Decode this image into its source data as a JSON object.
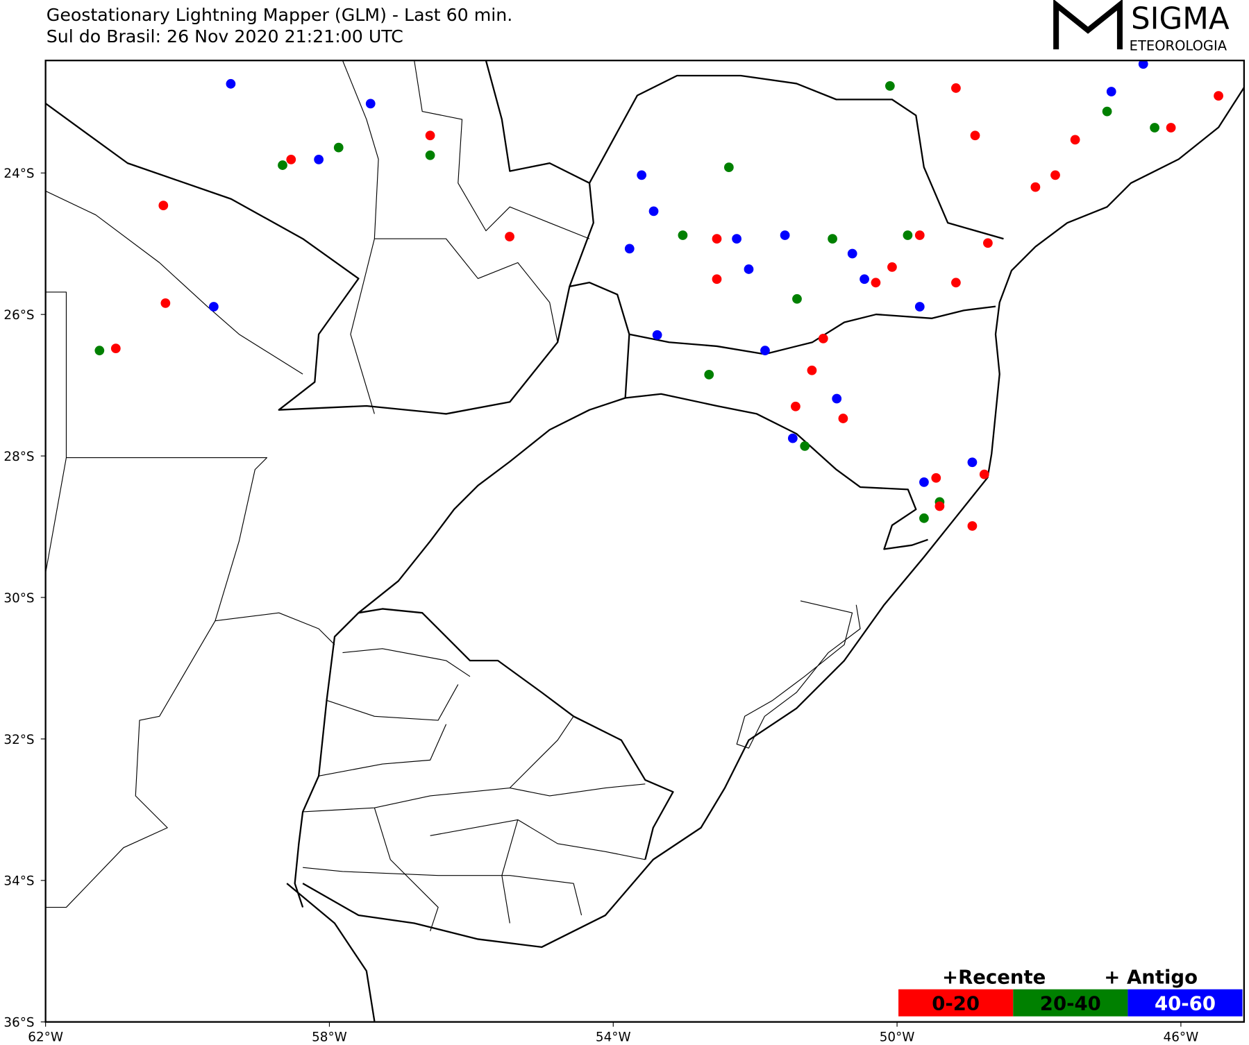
{
  "header": {
    "title": "Geostationary Lightning Mapper (GLM) - Last 60 min.",
    "subtitle": "Sul do Brasil:  26 Nov 2020 21:21:00 UTC"
  },
  "logo": {
    "name": "SIGMA",
    "tagline": "ETEOROLOGIA"
  },
  "map": {
    "xlim": [
      -62,
      -45.11
    ],
    "ylim": [
      -36,
      -22.41
    ],
    "xticks": [
      {
        "value": -62,
        "label": "62°W"
      },
      {
        "value": -58,
        "label": "58°W"
      },
      {
        "value": -54,
        "label": "54°W"
      },
      {
        "value": -50,
        "label": "50°W"
      },
      {
        "value": -46,
        "label": "46°W"
      }
    ],
    "yticks": [
      {
        "value": -24,
        "label": "24°S"
      },
      {
        "value": -26,
        "label": "26°S"
      },
      {
        "value": -28,
        "label": "28°S"
      },
      {
        "value": -30,
        "label": "30°S"
      },
      {
        "value": -32,
        "label": "32°S"
      },
      {
        "value": -34,
        "label": "34°S"
      },
      {
        "value": -36,
        "label": "36°S"
      }
    ],
    "strike_groups": [
      {
        "name": "40-60",
        "color": "#0000ff",
        "points": [
          [
            -59.39,
            -22.74
          ],
          [
            -57.42,
            -23.02
          ],
          [
            -58.15,
            -23.81
          ],
          [
            -59.63,
            -25.89
          ],
          [
            -53.6,
            -24.03
          ],
          [
            -53.43,
            -24.54
          ],
          [
            -52.26,
            -24.93
          ],
          [
            -51.58,
            -24.88
          ],
          [
            -50.63,
            -25.14
          ],
          [
            -50.46,
            -25.5
          ],
          [
            -50.85,
            -27.19
          ],
          [
            -51.47,
            -27.75
          ],
          [
            -51.86,
            -26.51
          ],
          [
            -53.38,
            -26.29
          ],
          [
            -48.94,
            -28.09
          ],
          [
            -49.62,
            -28.37
          ],
          [
            -46.98,
            -22.85
          ],
          [
            -46.53,
            -22.46
          ],
          [
            -52.09,
            -25.36
          ],
          [
            -53.77,
            -25.07
          ],
          [
            -49.68,
            -25.89
          ]
        ]
      },
      {
        "name": "20-40",
        "color": "#008000",
        "points": [
          [
            -58.66,
            -23.89
          ],
          [
            -57.87,
            -23.64
          ],
          [
            -56.58,
            -23.75
          ],
          [
            -61.24,
            -26.51
          ],
          [
            -50.1,
            -22.77
          ],
          [
            -50.91,
            -24.93
          ],
          [
            -51.41,
            -25.78
          ],
          [
            -49.4,
            -28.65
          ],
          [
            -46.37,
            -23.36
          ],
          [
            -47.04,
            -23.13
          ],
          [
            -51.3,
            -27.86
          ],
          [
            -52.65,
            -26.85
          ],
          [
            -49.85,
            -24.88
          ],
          [
            -49.62,
            -28.88
          ],
          [
            -53.02,
            -24.88
          ],
          [
            -52.37,
            -23.92
          ]
        ]
      },
      {
        "name": "0-20",
        "color": "#ff0000",
        "points": [
          [
            -58.54,
            -23.81
          ],
          [
            -56.58,
            -23.47
          ],
          [
            -60.34,
            -24.46
          ],
          [
            -55.46,
            -24.9
          ],
          [
            -52.54,
            -24.93
          ],
          [
            -52.54,
            -25.5
          ],
          [
            -50.07,
            -25.33
          ],
          [
            -49.17,
            -25.55
          ],
          [
            -49.68,
            -24.88
          ],
          [
            -50.3,
            -25.55
          ],
          [
            -51.2,
            -26.79
          ],
          [
            -50.76,
            -27.47
          ],
          [
            -51.43,
            -27.3
          ],
          [
            -51.04,
            -26.34
          ],
          [
            -49.4,
            -28.71
          ],
          [
            -48.77,
            -28.26
          ],
          [
            -48.94,
            -28.99
          ],
          [
            -47.49,
            -23.53
          ],
          [
            -46.14,
            -23.36
          ],
          [
            -45.47,
            -22.91
          ],
          [
            -49.17,
            -22.8
          ],
          [
            -47.77,
            -24.03
          ],
          [
            -61.01,
            -26.48
          ],
          [
            -60.31,
            -25.84
          ],
          [
            -48.72,
            -24.99
          ],
          [
            -48.9,
            -23.47
          ],
          [
            -48.05,
            -24.2
          ],
          [
            -49.45,
            -28.31
          ]
        ]
      }
    ]
  },
  "legend": {
    "recent": "+Recente",
    "old": "+ Antigo"
  }
}
